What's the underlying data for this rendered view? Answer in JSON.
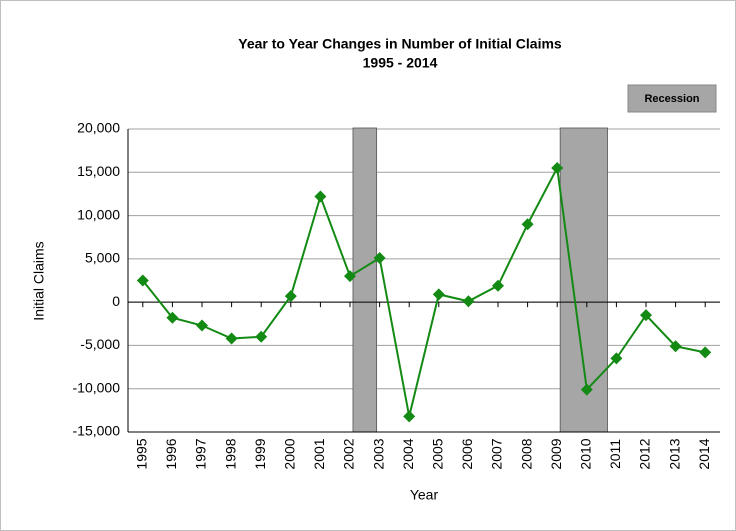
{
  "chart_data": {
    "type": "line",
    "title": "Year to Year Changes in Number of Initial Claims",
    "subtitle": "1995 - 2014",
    "x_label": "Year",
    "y_label": "Initial Claims",
    "x": [
      1995,
      1996,
      1997,
      1998,
      1999,
      2000,
      2001,
      2002,
      2003,
      2004,
      2005,
      2006,
      2007,
      2008,
      2009,
      2010,
      2011,
      2012,
      2013,
      2014
    ],
    "xlim": [
      1994.5,
      2014.5
    ],
    "series": [
      {
        "name": "Initial Claims",
        "color": "#138a13",
        "values": [
          2500,
          -1800,
          -2700,
          -4200,
          -4000,
          700,
          12200,
          3000,
          5100,
          -13200,
          900,
          100,
          1900,
          9000,
          15500,
          -10100,
          -6500,
          -1500,
          -5100,
          -5800
        ]
      }
    ],
    "recessions": {
      "name": "Recession",
      "color": "#a6a6a6",
      "spans": [
        [
          2002.1,
          2002.9
        ],
        [
          2009.1,
          2010.7
        ]
      ]
    },
    "ylim": [
      -15000,
      20000
    ],
    "yticks": [
      {
        "value": -15000,
        "label": "-15,000"
      },
      {
        "value": -10000,
        "label": "-10,000"
      },
      {
        "value": -5000,
        "label": "-5,000"
      },
      0,
      {
        "value": 5000,
        "label": "5,000"
      },
      {
        "value": 10000,
        "label": "10,000"
      },
      {
        "value": 15000,
        "label": "15,000"
      },
      {
        "value": 20000,
        "label": "20,000"
      }
    ],
    "grid": true
  }
}
